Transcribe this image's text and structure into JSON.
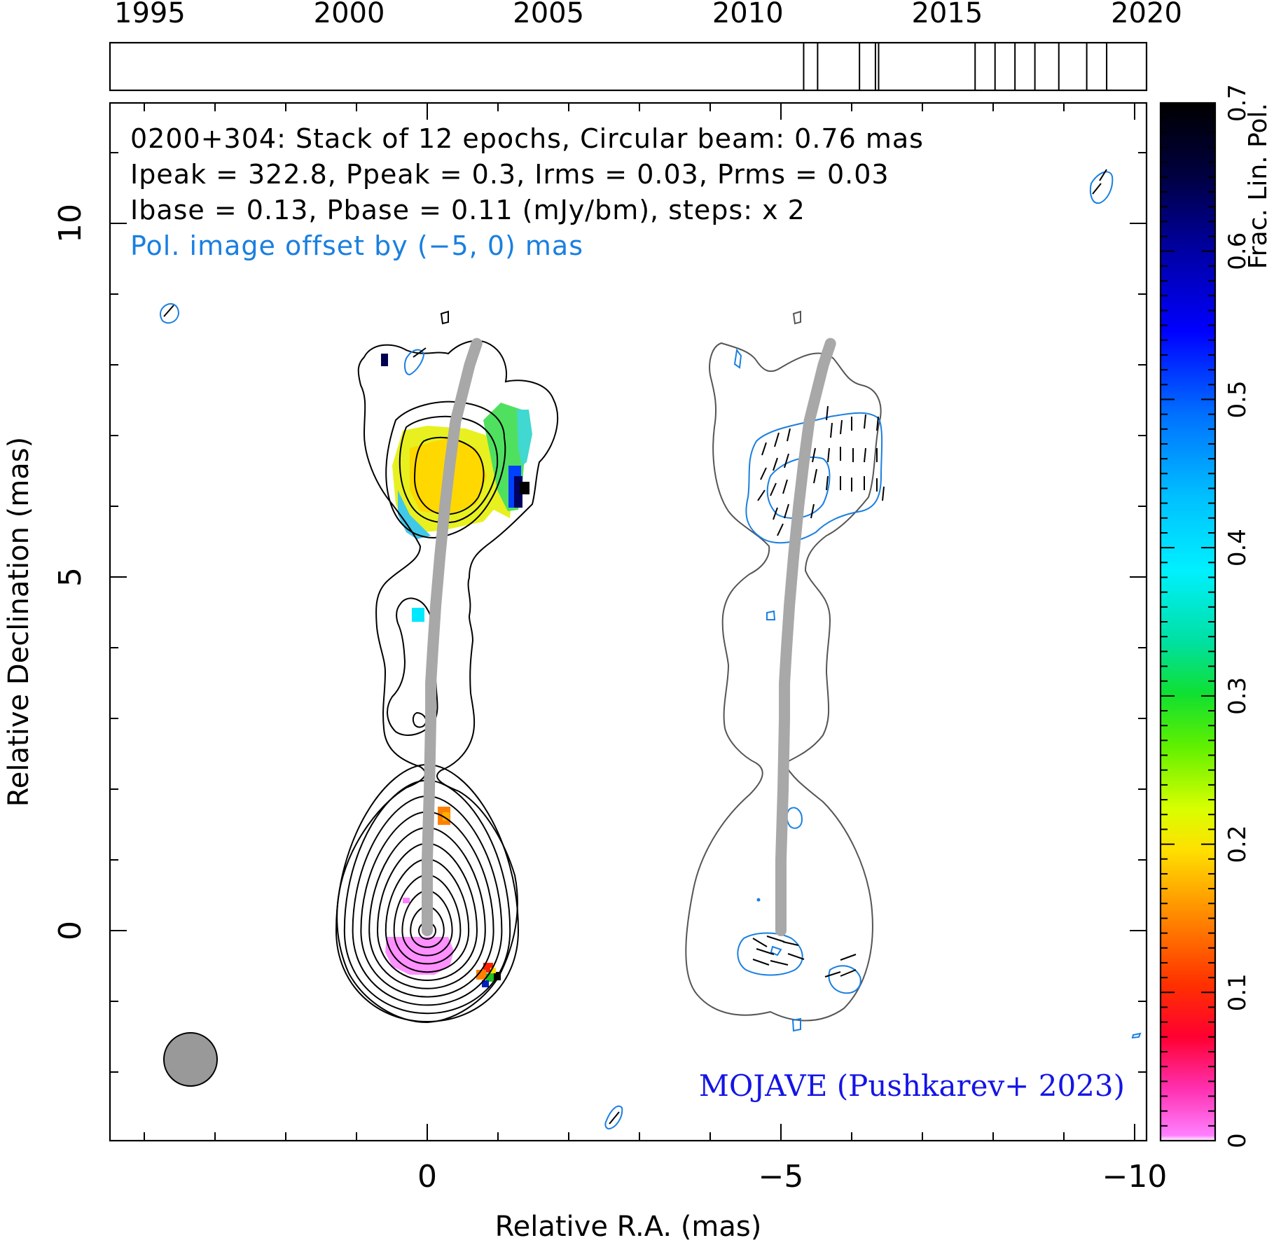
{
  "chart_data": {
    "type": "heatmap",
    "title": "0200+304: Stack of 12 epochs, Circular beam: 0.76 mas",
    "info_lines": [
      "Ipeak = 322.8, Ppeak = 0.3, Irms = 0.03, Prms = 0.03",
      "Ibase = 0.13, Pbase = 0.11 (mJy/bm), steps: x 2"
    ],
    "pol_note": "Pol. image offset by (−5, 0) mas",
    "credit": "MOJAVE (Pushkarev+ 2023)",
    "xlabel": "Relative R.A. (mas)",
    "ylabel": "Relative Declination (mas)",
    "xlim": [
      4.5,
      -10.2
    ],
    "ylim": [
      -3.0,
      11.7
    ],
    "xticks": [
      {
        "value": 0,
        "label": "0"
      },
      {
        "value": -5,
        "label": "−5"
      },
      {
        "value": -10,
        "label": "−10"
      }
    ],
    "yticks": [
      {
        "value": 0,
        "label": "0"
      },
      {
        "value": 5,
        "label": "5"
      },
      {
        "value": 10,
        "label": "10"
      }
    ],
    "timeline": {
      "range": [
        1994,
        2020
      ],
      "tick_labels": [
        "1995",
        "2000",
        "2005",
        "2010",
        "2015",
        "2020"
      ],
      "tick_years": [
        1995,
        2000,
        2005,
        2010,
        2015,
        2020
      ],
      "epochs": [
        2011.4,
        2011.75,
        2012.8,
        2013.2,
        2013.28,
        2015.7,
        2016.2,
        2016.7,
        2017.2,
        2017.8,
        2018.5,
        2019.0
      ],
      "epoch_count": 12
    },
    "colorbar": {
      "label": "Frac. Lin. Pol.",
      "range": [
        0,
        0.7
      ],
      "tick_labels": [
        "0",
        "0.1",
        "0.2",
        "0.3",
        "0.4",
        "0.5",
        "0.6",
        "0.7"
      ],
      "tick_values": [
        0,
        0.1,
        0.2,
        0.3,
        0.4,
        0.5,
        0.6,
        0.7
      ]
    },
    "beam_diameter_mas": 0.76,
    "ridge_line": {
      "x": [
        0,
        0.0,
        0.03,
        0.05,
        0.05,
        0.08,
        0.12,
        0.18,
        0.25,
        0.32,
        0.4,
        0.5,
        0.6,
        0.7
      ],
      "y": [
        0,
        1.0,
        2.0,
        3.0,
        3.5,
        4.0,
        4.6,
        5.3,
        6.0,
        6.6,
        7.2,
        7.6,
        8.0,
        8.3
      ]
    },
    "frac_pol_regions": [
      {
        "name": "upper jet knot",
        "x": 0.25,
        "y": 6.5,
        "frac_pol": 0.17
      },
      {
        "name": "upper jet east edge",
        "x": -1.3,
        "y": 6.3,
        "frac_pol": 0.6
      },
      {
        "name": "core region",
        "x": 0.1,
        "y": -0.25,
        "frac_pol": 0.01
      },
      {
        "name": "lower knot",
        "x": -0.25,
        "y": 1.55,
        "frac_pol": 0.1
      },
      {
        "name": "mid jet",
        "x": 0.15,
        "y": 4.4,
        "frac_pol": 0.4
      }
    ]
  },
  "colors": {
    "total_intensity_contours": "#000000",
    "pol_intensity_contours": "#1a7fe0",
    "ridge_line": "#a8a8a8",
    "credit_text": "#1414e6",
    "pol_note_text": "#1a7fe0",
    "beam_fill": "#999999"
  }
}
